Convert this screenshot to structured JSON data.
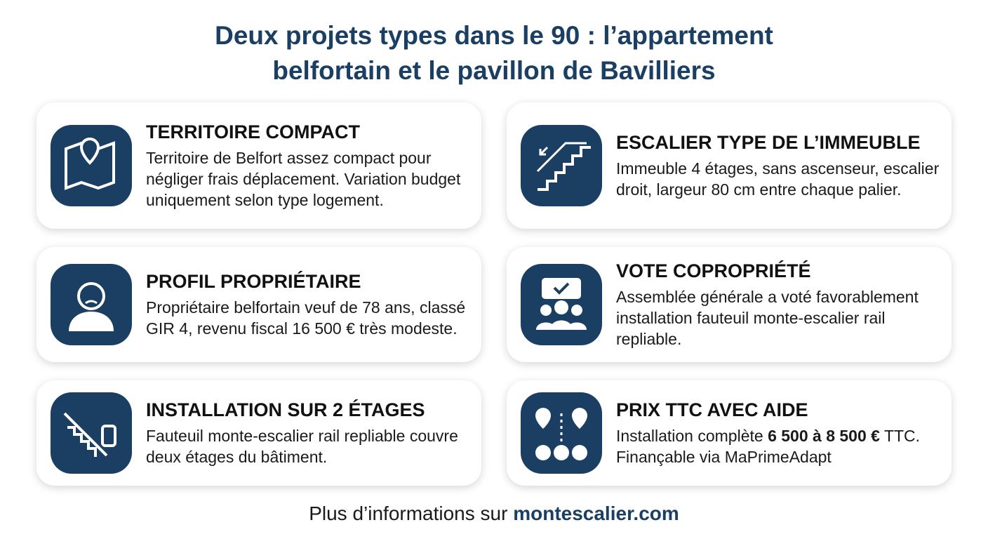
{
  "header": {
    "title_lines": [
      "Deux projets types dans le 90 : l’appartement",
      "belfortain et le pavillon de Bavilliers"
    ]
  },
  "cards": [
    {
      "title": "TERRITOIRE COMPACT",
      "text": [
        "Territoire de Belfort assez compact pour négliger frais déplacement. Variation budget uniquement selon type logement."
      ]
    },
    {
      "title": "ESCALIER TYPE DE L’IMMEUBLE",
      "text": [
        "Immeuble 4 étages, sans ascenseur, escalier droit, largeur 80 cm entre chaque palier."
      ]
    },
    {
      "title": "PROFIL PROPRIÉTAIRE",
      "text": [
        "Propriétaire belfortain veuf de 78 ans, classé GIR 4, revenu fiscal 16 500 € très modeste."
      ]
    },
    {
      "title": "VOTE COPROPRIÉTÉ",
      "text": [
        "Assemblée générale a voté favorablement installation fauteuil monte-escalier rail repliable."
      ]
    },
    {
      "title": "INSTALLATION SUR 2 ÉTAGES",
      "text": [
        "Fauteuil monte-escalier rail repliable couvre deux étages du bâtiment."
      ]
    },
    {
      "title": "PRIX TTC AVEC AIDE",
      "text": [
        "Installation complète",
        "6 500 à 8 500 €",
        "TTC. Finançable via MaPrimeAdapt"
      ],
      "strong": 1
    }
  ],
  "footer": {
    "text": "Plus d’informations sur",
    "link": "montescalier.com"
  }
}
